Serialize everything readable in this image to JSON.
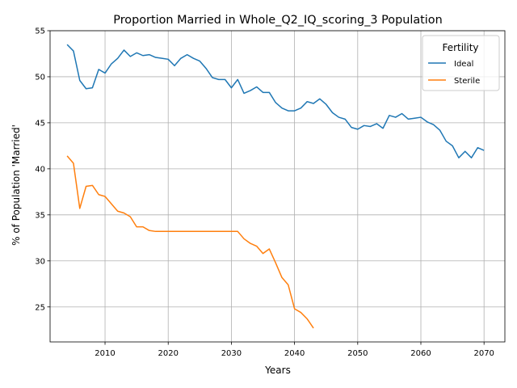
{
  "chart_data": {
    "type": "line",
    "title": "Proportion Married in Whole_Q2_IQ_scoring_3 Population",
    "xlabel": "Years",
    "ylabel": "% of Population 'Married'",
    "xlim": [
      2001.3,
      2073.3
    ],
    "ylim": [
      21.2,
      55
    ],
    "xticks": [
      2010,
      2020,
      2030,
      2040,
      2050,
      2060,
      2070
    ],
    "yticks": [
      25,
      30,
      35,
      40,
      45,
      50,
      55
    ],
    "grid": true,
    "legend": {
      "title": "Fertility",
      "placement": "top-right"
    },
    "series": [
      {
        "name": "Ideal",
        "color": "#1f77b4",
        "x": [
          2004,
          2005,
          2006,
          2007,
          2008,
          2009,
          2010,
          2011,
          2012,
          2013,
          2014,
          2015,
          2016,
          2017,
          2018,
          2019,
          2020,
          2021,
          2022,
          2023,
          2024,
          2025,
          2026,
          2027,
          2028,
          2029,
          2030,
          2031,
          2032,
          2033,
          2034,
          2035,
          2036,
          2037,
          2038,
          2039,
          2040,
          2041,
          2042,
          2043,
          2044,
          2045,
          2046,
          2047,
          2048,
          2049,
          2050,
          2051,
          2052,
          2053,
          2054,
          2055,
          2056,
          2057,
          2058,
          2059,
          2060,
          2061,
          2062,
          2063,
          2064,
          2065,
          2066,
          2067,
          2068,
          2069,
          2070
        ],
        "y": [
          53.5,
          52.8,
          49.6,
          48.7,
          48.8,
          50.8,
          50.4,
          51.4,
          52.0,
          52.9,
          52.2,
          52.6,
          52.3,
          52.4,
          52.1,
          52.0,
          51.9,
          51.2,
          52.0,
          52.4,
          52.0,
          51.7,
          50.9,
          49.9,
          49.7,
          49.7,
          48.8,
          49.7,
          48.2,
          48.5,
          48.9,
          48.3,
          48.3,
          47.2,
          46.6,
          46.3,
          46.3,
          46.6,
          47.3,
          47.1,
          47.6,
          47.0,
          46.1,
          45.6,
          45.4,
          44.5,
          44.3,
          44.7,
          44.6,
          44.9,
          44.4,
          45.8,
          45.6,
          46.0,
          45.4,
          45.5,
          45.6,
          45.1,
          44.8,
          44.2,
          43.0,
          42.5,
          41.2,
          41.9,
          41.2,
          42.3,
          42.0
        ]
      },
      {
        "name": "Sterile",
        "color": "#ff7f0e",
        "x": [
          2004,
          2005,
          2006,
          2007,
          2008,
          2009,
          2010,
          2011,
          2012,
          2013,
          2014,
          2015,
          2016,
          2017,
          2018,
          2019,
          2020,
          2021,
          2022,
          2023,
          2024,
          2025,
          2026,
          2027,
          2028,
          2029,
          2030,
          2031,
          2032,
          2033,
          2034,
          2035,
          2036,
          2037,
          2038,
          2039,
          2040,
          2041,
          2042,
          2043
        ],
        "y": [
          41.4,
          40.6,
          35.7,
          38.1,
          38.2,
          37.2,
          37.0,
          36.2,
          35.4,
          35.2,
          34.8,
          33.7,
          33.7,
          33.3,
          33.2,
          33.2,
          33.2,
          33.2,
          33.2,
          33.2,
          33.2,
          33.2,
          33.2,
          33.2,
          33.2,
          33.2,
          33.2,
          33.2,
          32.4,
          31.9,
          31.6,
          30.8,
          31.3,
          29.8,
          28.2,
          27.4,
          24.8,
          24.4,
          23.7,
          22.7
        ]
      }
    ]
  }
}
